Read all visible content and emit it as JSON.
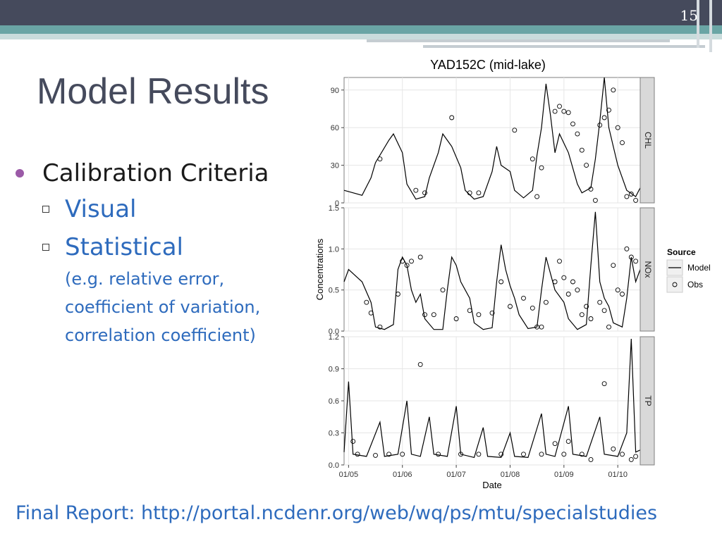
{
  "slide": {
    "number": "15",
    "title": "Model Results",
    "bullet": "Calibration Criteria",
    "sub_bullets": [
      "Visual",
      "Statistical"
    ],
    "detail_lines": [
      "(e.g. relative error,",
      "coefficient of variation,",
      "correlation coefficient)"
    ],
    "footer": "Final Report: http://portal.ncdenr.org/web/wq/ps/mtu/specialstudies"
  },
  "colors": {
    "title": "#454a5c",
    "sub_bullet_text": "#2e6bbd",
    "bullet_dot": "#9b5aa7",
    "accent_teal": "#6aa5a5"
  },
  "chart_data": {
    "type": "line",
    "title": "YAD152C (mid-lake)",
    "xlabel": "Date",
    "ylabel": "Concentrations",
    "x_ticks": [
      "01/05",
      "01/06",
      "01/07",
      "01/08",
      "01/09",
      "01/10"
    ],
    "x_range": [
      "2004-12",
      "2010-04"
    ],
    "legend": {
      "title": "Source",
      "entries": [
        "Model",
        "Obs"
      ],
      "position": "right"
    },
    "facets": [
      {
        "name": "CHL",
        "ylim": [
          0,
          100
        ],
        "y_ticks": [
          "0",
          "30",
          "60",
          "90"
        ],
        "model": [
          [
            0,
            10
          ],
          [
            4,
            6
          ],
          [
            6,
            20
          ],
          [
            7,
            32
          ],
          [
            10,
            50
          ],
          [
            11,
            55
          ],
          [
            13,
            40
          ],
          [
            14,
            15
          ],
          [
            16,
            3
          ],
          [
            18,
            5
          ],
          [
            19,
            20
          ],
          [
            21,
            40
          ],
          [
            22,
            55
          ],
          [
            24,
            45
          ],
          [
            26,
            28
          ],
          [
            27,
            10
          ],
          [
            29,
            3
          ],
          [
            31,
            5
          ],
          [
            33,
            25
          ],
          [
            34,
            45
          ],
          [
            35,
            30
          ],
          [
            37,
            25
          ],
          [
            38,
            10
          ],
          [
            40,
            4
          ],
          [
            42,
            10
          ],
          [
            43,
            38
          ],
          [
            44,
            60
          ],
          [
            45,
            95
          ],
          [
            46,
            70
          ],
          [
            47,
            40
          ],
          [
            48,
            55
          ],
          [
            50,
            40
          ],
          [
            52,
            15
          ],
          [
            53,
            8
          ],
          [
            55,
            12
          ],
          [
            56,
            35
          ],
          [
            57,
            65
          ],
          [
            58,
            105
          ],
          [
            59,
            60
          ],
          [
            60,
            45
          ],
          [
            61,
            30
          ],
          [
            63,
            10
          ],
          [
            65,
            5
          ],
          [
            66,
            12
          ]
        ],
        "obs": [
          [
            8,
            35
          ],
          [
            16,
            10
          ],
          [
            18,
            8
          ],
          [
            24,
            68
          ],
          [
            28,
            8
          ],
          [
            30,
            8
          ],
          [
            38,
            58
          ],
          [
            42,
            35
          ],
          [
            43,
            5
          ],
          [
            44,
            28
          ],
          [
            47,
            73
          ],
          [
            48,
            77
          ],
          [
            49,
            73
          ],
          [
            50,
            72
          ],
          [
            51,
            63
          ],
          [
            52,
            55
          ],
          [
            53,
            42
          ],
          [
            54,
            30
          ],
          [
            55,
            11
          ],
          [
            56,
            2
          ],
          [
            57,
            62
          ],
          [
            58,
            68
          ],
          [
            59,
            74
          ],
          [
            60,
            90
          ],
          [
            61,
            60
          ],
          [
            62,
            48
          ],
          [
            63,
            5
          ],
          [
            64,
            7
          ],
          [
            65,
            2
          ]
        ]
      },
      {
        "name": "NOx",
        "ylim": [
          0,
          1.5
        ],
        "y_ticks": [
          "0.0",
          "0.5",
          "1.0",
          "1.5"
        ],
        "model": [
          [
            0,
            0.6
          ],
          [
            1,
            0.75
          ],
          [
            3,
            0.65
          ],
          [
            4,
            0.6
          ],
          [
            6,
            0.35
          ],
          [
            7,
            0.05
          ],
          [
            9,
            0.02
          ],
          [
            11,
            0.08
          ],
          [
            12,
            0.75
          ],
          [
            13,
            0.9
          ],
          [
            14,
            0.8
          ],
          [
            15,
            0.5
          ],
          [
            16,
            0.35
          ],
          [
            17,
            0.45
          ],
          [
            18,
            0.15
          ],
          [
            20,
            0.02
          ],
          [
            22,
            0.02
          ],
          [
            23,
            0.5
          ],
          [
            24,
            0.9
          ],
          [
            25,
            0.8
          ],
          [
            26,
            0.6
          ],
          [
            28,
            0.4
          ],
          [
            29,
            0.1
          ],
          [
            31,
            0.02
          ],
          [
            33,
            0.04
          ],
          [
            34,
            0.6
          ],
          [
            35,
            1.05
          ],
          [
            36,
            0.75
          ],
          [
            37,
            0.55
          ],
          [
            38,
            0.4
          ],
          [
            39,
            0.2
          ],
          [
            41,
            0.03
          ],
          [
            43,
            0.05
          ],
          [
            44,
            0.5
          ],
          [
            45,
            0.9
          ],
          [
            46,
            0.7
          ],
          [
            47,
            0.5
          ],
          [
            49,
            0.35
          ],
          [
            50,
            0.15
          ],
          [
            52,
            0.02
          ],
          [
            54,
            0.08
          ],
          [
            55,
            0.8
          ],
          [
            56,
            1.45
          ],
          [
            57,
            0.6
          ],
          [
            58,
            0.4
          ],
          [
            59,
            0.3
          ],
          [
            60,
            0.1
          ],
          [
            62,
            0.05
          ],
          [
            63,
            0.4
          ],
          [
            64,
            0.9
          ],
          [
            65,
            0.6
          ],
          [
            66,
            0.75
          ]
        ],
        "obs": [
          [
            5,
            0.35
          ],
          [
            6,
            0.22
          ],
          [
            8,
            0.05
          ],
          [
            12,
            0.45
          ],
          [
            13,
            0.85
          ],
          [
            14,
            0.8
          ],
          [
            15,
            0.85
          ],
          [
            17,
            0.9
          ],
          [
            18,
            0.2
          ],
          [
            20,
            0.2
          ],
          [
            22,
            0.5
          ],
          [
            25,
            0.15
          ],
          [
            28,
            0.25
          ],
          [
            30,
            0.2
          ],
          [
            33,
            0.22
          ],
          [
            35,
            0.6
          ],
          [
            37,
            0.3
          ],
          [
            40,
            0.4
          ],
          [
            42,
            0.28
          ],
          [
            43,
            0.05
          ],
          [
            44,
            0.05
          ],
          [
            45,
            0.35
          ],
          [
            47,
            0.6
          ],
          [
            48,
            0.85
          ],
          [
            49,
            0.65
          ],
          [
            50,
            0.45
          ],
          [
            51,
            0.6
          ],
          [
            52,
            0.5
          ],
          [
            53,
            0.2
          ],
          [
            54,
            0.3
          ],
          [
            55,
            0.15
          ],
          [
            57,
            0.35
          ],
          [
            58,
            0.25
          ],
          [
            59,
            0.05
          ],
          [
            60,
            0.8
          ],
          [
            61,
            0.5
          ],
          [
            62,
            0.45
          ],
          [
            63,
            1.0
          ],
          [
            64,
            0.9
          ],
          [
            65,
            0.85
          ]
        ]
      },
      {
        "name": "TP",
        "ylim": [
          0,
          1.2
        ],
        "y_ticks": [
          "0.0",
          "0.3",
          "0.6",
          "0.9",
          "1.2"
        ],
        "model": [
          [
            0,
            0.12
          ],
          [
            1,
            0.78
          ],
          [
            2,
            0.1
          ],
          [
            5,
            0.08
          ],
          [
            8,
            0.4
          ],
          [
            9,
            0.08
          ],
          [
            12,
            0.1
          ],
          [
            14,
            0.6
          ],
          [
            15,
            0.1
          ],
          [
            17,
            0.08
          ],
          [
            19,
            0.45
          ],
          [
            20,
            0.1
          ],
          [
            23,
            0.08
          ],
          [
            25,
            0.55
          ],
          [
            26,
            0.1
          ],
          [
            29,
            0.07
          ],
          [
            31,
            0.35
          ],
          [
            32,
            0.08
          ],
          [
            35,
            0.07
          ],
          [
            37,
            0.3
          ],
          [
            38,
            0.08
          ],
          [
            41,
            0.07
          ],
          [
            44,
            0.48
          ],
          [
            45,
            0.1
          ],
          [
            47,
            0.08
          ],
          [
            50,
            0.55
          ],
          [
            51,
            0.1
          ],
          [
            54,
            0.08
          ],
          [
            57,
            0.45
          ],
          [
            58,
            0.1
          ],
          [
            61,
            0.08
          ],
          [
            63,
            0.3
          ],
          [
            64,
            1.18
          ],
          [
            65,
            0.12
          ],
          [
            66,
            0.14
          ]
        ],
        "obs": [
          [
            2,
            0.22
          ],
          [
            3,
            0.1
          ],
          [
            7,
            0.09
          ],
          [
            10,
            0.1
          ],
          [
            13,
            0.1
          ],
          [
            17,
            0.94
          ],
          [
            21,
            0.1
          ],
          [
            26,
            0.1
          ],
          [
            30,
            0.1
          ],
          [
            35,
            0.1
          ],
          [
            40,
            0.1
          ],
          [
            44,
            0.1
          ],
          [
            47,
            0.2
          ],
          [
            49,
            0.1
          ],
          [
            50,
            0.22
          ],
          [
            53,
            0.1
          ],
          [
            55,
            0.05
          ],
          [
            58,
            0.76
          ],
          [
            60,
            0.15
          ],
          [
            62,
            0.1
          ],
          [
            64,
            0.05
          ],
          [
            65,
            0.08
          ]
        ]
      }
    ]
  }
}
